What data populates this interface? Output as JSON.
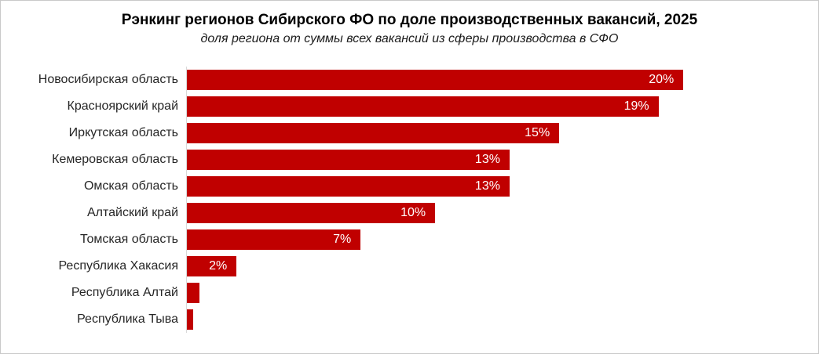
{
  "header": {
    "title": "Рэнкинг регионов Сибирского ФО по доле производственных вакансий, 2025",
    "subtitle": "доля региона от суммы всех вакансий из сферы производства в СФО"
  },
  "chart_data": {
    "type": "bar",
    "orientation": "horizontal",
    "title": "Рэнкинг регионов Сибирского ФО по доле производственных вакансий, 2025",
    "subtitle": "доля региона от суммы всех вакансий из сферы производства в СФО",
    "categories": [
      "Новосибирская область",
      "Красноярский край",
      "Иркутская область",
      "Кемеровская область",
      "Омская область",
      "Алтайский край",
      "Томская область",
      "Республика Хакасия",
      "Республика Алтай",
      "Республика Тыва"
    ],
    "values": [
      20,
      19,
      15,
      13,
      13,
      10,
      7,
      2,
      0.5,
      0.25
    ],
    "value_labels": [
      "20%",
      "19%",
      "15%",
      "13%",
      "13%",
      "10%",
      "7%",
      "2%",
      "",
      ""
    ],
    "xlabel": "",
    "ylabel": "",
    "xlim": [
      0,
      24.8
    ],
    "grid": false,
    "legend": false,
    "bar_color": "#C00000",
    "value_label_color": "#FFFFFF",
    "axis_line_color": "#D9D9D9"
  }
}
